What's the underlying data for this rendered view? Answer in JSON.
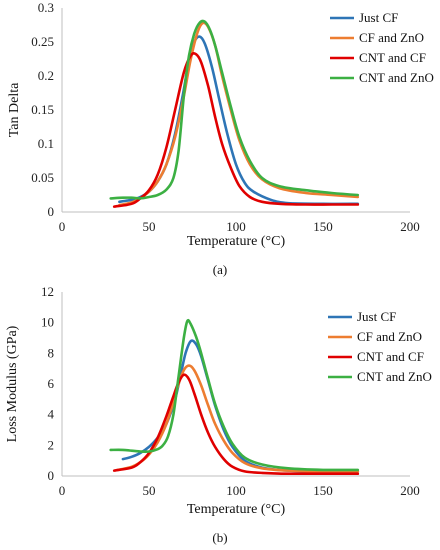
{
  "chart_data": [
    {
      "type": "line",
      "caption": "(a)",
      "xlabel": "Temperature (°C)",
      "ylabel": "Tan Delta",
      "xlim": [
        0,
        200
      ],
      "ylim": [
        0,
        0.3
      ],
      "xticks": [
        0,
        50,
        100,
        150,
        200
      ],
      "yticks": [
        0,
        0.05,
        0.1,
        0.15,
        0.2,
        0.25,
        0.3
      ],
      "ytick_labels": [
        "0",
        "0.05",
        "0.1",
        "0.15",
        "0.2",
        "0.25",
        "0.3"
      ],
      "grid": false,
      "legend": "top-right",
      "series": [
        {
          "name": "Just CF",
          "color": "#2E75B6",
          "x": [
            33,
            40,
            45,
            50,
            55,
            60,
            65,
            70,
            73,
            76,
            79,
            82,
            86,
            90,
            95,
            100,
            105,
            110,
            120,
            130,
            150,
            170
          ],
          "y": [
            0.015,
            0.018,
            0.022,
            0.03,
            0.045,
            0.07,
            0.115,
            0.18,
            0.225,
            0.25,
            0.258,
            0.248,
            0.215,
            0.17,
            0.115,
            0.07,
            0.043,
            0.03,
            0.018,
            0.013,
            0.012,
            0.012
          ]
        },
        {
          "name": "CF and ZnO",
          "color": "#ED7D31",
          "x": [
            33,
            40,
            45,
            50,
            55,
            60,
            65,
            70,
            74,
            78,
            81,
            84,
            88,
            92,
            97,
            102,
            108,
            115,
            125,
            140,
            155,
            170
          ],
          "y": [
            0.01,
            0.014,
            0.02,
            0.03,
            0.045,
            0.07,
            0.11,
            0.17,
            0.225,
            0.265,
            0.278,
            0.272,
            0.245,
            0.2,
            0.15,
            0.105,
            0.07,
            0.048,
            0.035,
            0.028,
            0.025,
            0.022
          ]
        },
        {
          "name": "CNT and CF",
          "color": "#E00000",
          "x": [
            30,
            40,
            45,
            50,
            55,
            60,
            65,
            70,
            74,
            77,
            80,
            84,
            88,
            92,
            97,
            102,
            108,
            115,
            125,
            140,
            155,
            170
          ],
          "y": [
            0.008,
            0.012,
            0.02,
            0.032,
            0.055,
            0.095,
            0.15,
            0.205,
            0.23,
            0.232,
            0.22,
            0.185,
            0.14,
            0.1,
            0.065,
            0.038,
            0.022,
            0.015,
            0.012,
            0.011,
            0.011,
            0.011
          ]
        },
        {
          "name": "CNT and ZnO",
          "color": "#3CB043",
          "x": [
            28,
            35,
            40,
            45,
            50,
            55,
            60,
            64,
            67,
            70,
            73,
            76,
            79,
            82,
            85,
            88,
            92,
            97,
            102,
            108,
            115,
            125,
            140,
            155,
            170
          ],
          "y": [
            0.02,
            0.021,
            0.021,
            0.02,
            0.022,
            0.025,
            0.033,
            0.05,
            0.09,
            0.17,
            0.23,
            0.262,
            0.278,
            0.28,
            0.268,
            0.245,
            0.205,
            0.155,
            0.11,
            0.075,
            0.05,
            0.038,
            0.032,
            0.028,
            0.025
          ]
        }
      ]
    },
    {
      "type": "line",
      "caption": "(b)",
      "xlabel": "Temperature (°C)",
      "ylabel": "Loss Modulus (GPa)",
      "xlim": [
        0,
        200
      ],
      "ylim": [
        0,
        12
      ],
      "xticks": [
        0,
        50,
        100,
        150,
        200
      ],
      "yticks": [
        0,
        2,
        4,
        6,
        8,
        10,
        12
      ],
      "ytick_labels": [
        "0",
        "2",
        "4",
        "6",
        "8",
        "10",
        "12"
      ],
      "grid": false,
      "legend": "top-right",
      "series": [
        {
          "name": "Just CF",
          "color": "#2E75B6",
          "x": [
            35,
            40,
            45,
            50,
            55,
            60,
            65,
            68,
            71,
            74,
            77,
            80,
            84,
            88,
            93,
            98,
            105,
            115,
            130,
            150,
            170
          ],
          "y": [
            1.1,
            1.25,
            1.5,
            1.9,
            2.5,
            3.4,
            5.0,
            6.5,
            8.0,
            8.8,
            8.6,
            7.8,
            6.2,
            4.6,
            3.0,
            1.9,
            1.0,
            0.55,
            0.35,
            0.3,
            0.3
          ]
        },
        {
          "name": "CF and ZnO",
          "color": "#ED7D31",
          "x": [
            32,
            40,
            45,
            50,
            55,
            60,
            64,
            67,
            70,
            73,
            76,
            80,
            84,
            88,
            93,
            98,
            105,
            115,
            130,
            150,
            170
          ],
          "y": [
            0.4,
            0.6,
            0.9,
            1.4,
            2.2,
            3.4,
            4.8,
            6.0,
            6.9,
            7.2,
            6.9,
            5.9,
            4.6,
            3.4,
            2.3,
            1.5,
            0.85,
            0.5,
            0.35,
            0.3,
            0.3
          ]
        },
        {
          "name": "CNT and CF",
          "color": "#E00000",
          "x": [
            30,
            40,
            45,
            50,
            55,
            60,
            64,
            67,
            70,
            73,
            76,
            80,
            84,
            88,
            93,
            98,
            105,
            115,
            130,
            150,
            170
          ],
          "y": [
            0.35,
            0.55,
            0.9,
            1.5,
            2.5,
            3.9,
            5.2,
            6.1,
            6.6,
            6.3,
            5.4,
            4.0,
            2.8,
            1.9,
            1.1,
            0.6,
            0.3,
            0.2,
            0.15,
            0.15,
            0.15
          ]
        },
        {
          "name": "CNT and ZnO",
          "color": "#3CB043",
          "x": [
            28,
            35,
            40,
            45,
            50,
            55,
            58,
            61,
            64,
            67,
            70,
            72,
            74,
            77,
            80,
            84,
            88,
            93,
            98,
            105,
            115,
            130,
            150,
            170
          ],
          "y": [
            1.7,
            1.7,
            1.65,
            1.6,
            1.6,
            1.75,
            2.0,
            2.6,
            4.0,
            6.5,
            9.0,
            10.1,
            9.9,
            9.1,
            8.0,
            6.3,
            4.7,
            3.2,
            2.1,
            1.2,
            0.75,
            0.5,
            0.4,
            0.4
          ]
        }
      ]
    }
  ]
}
